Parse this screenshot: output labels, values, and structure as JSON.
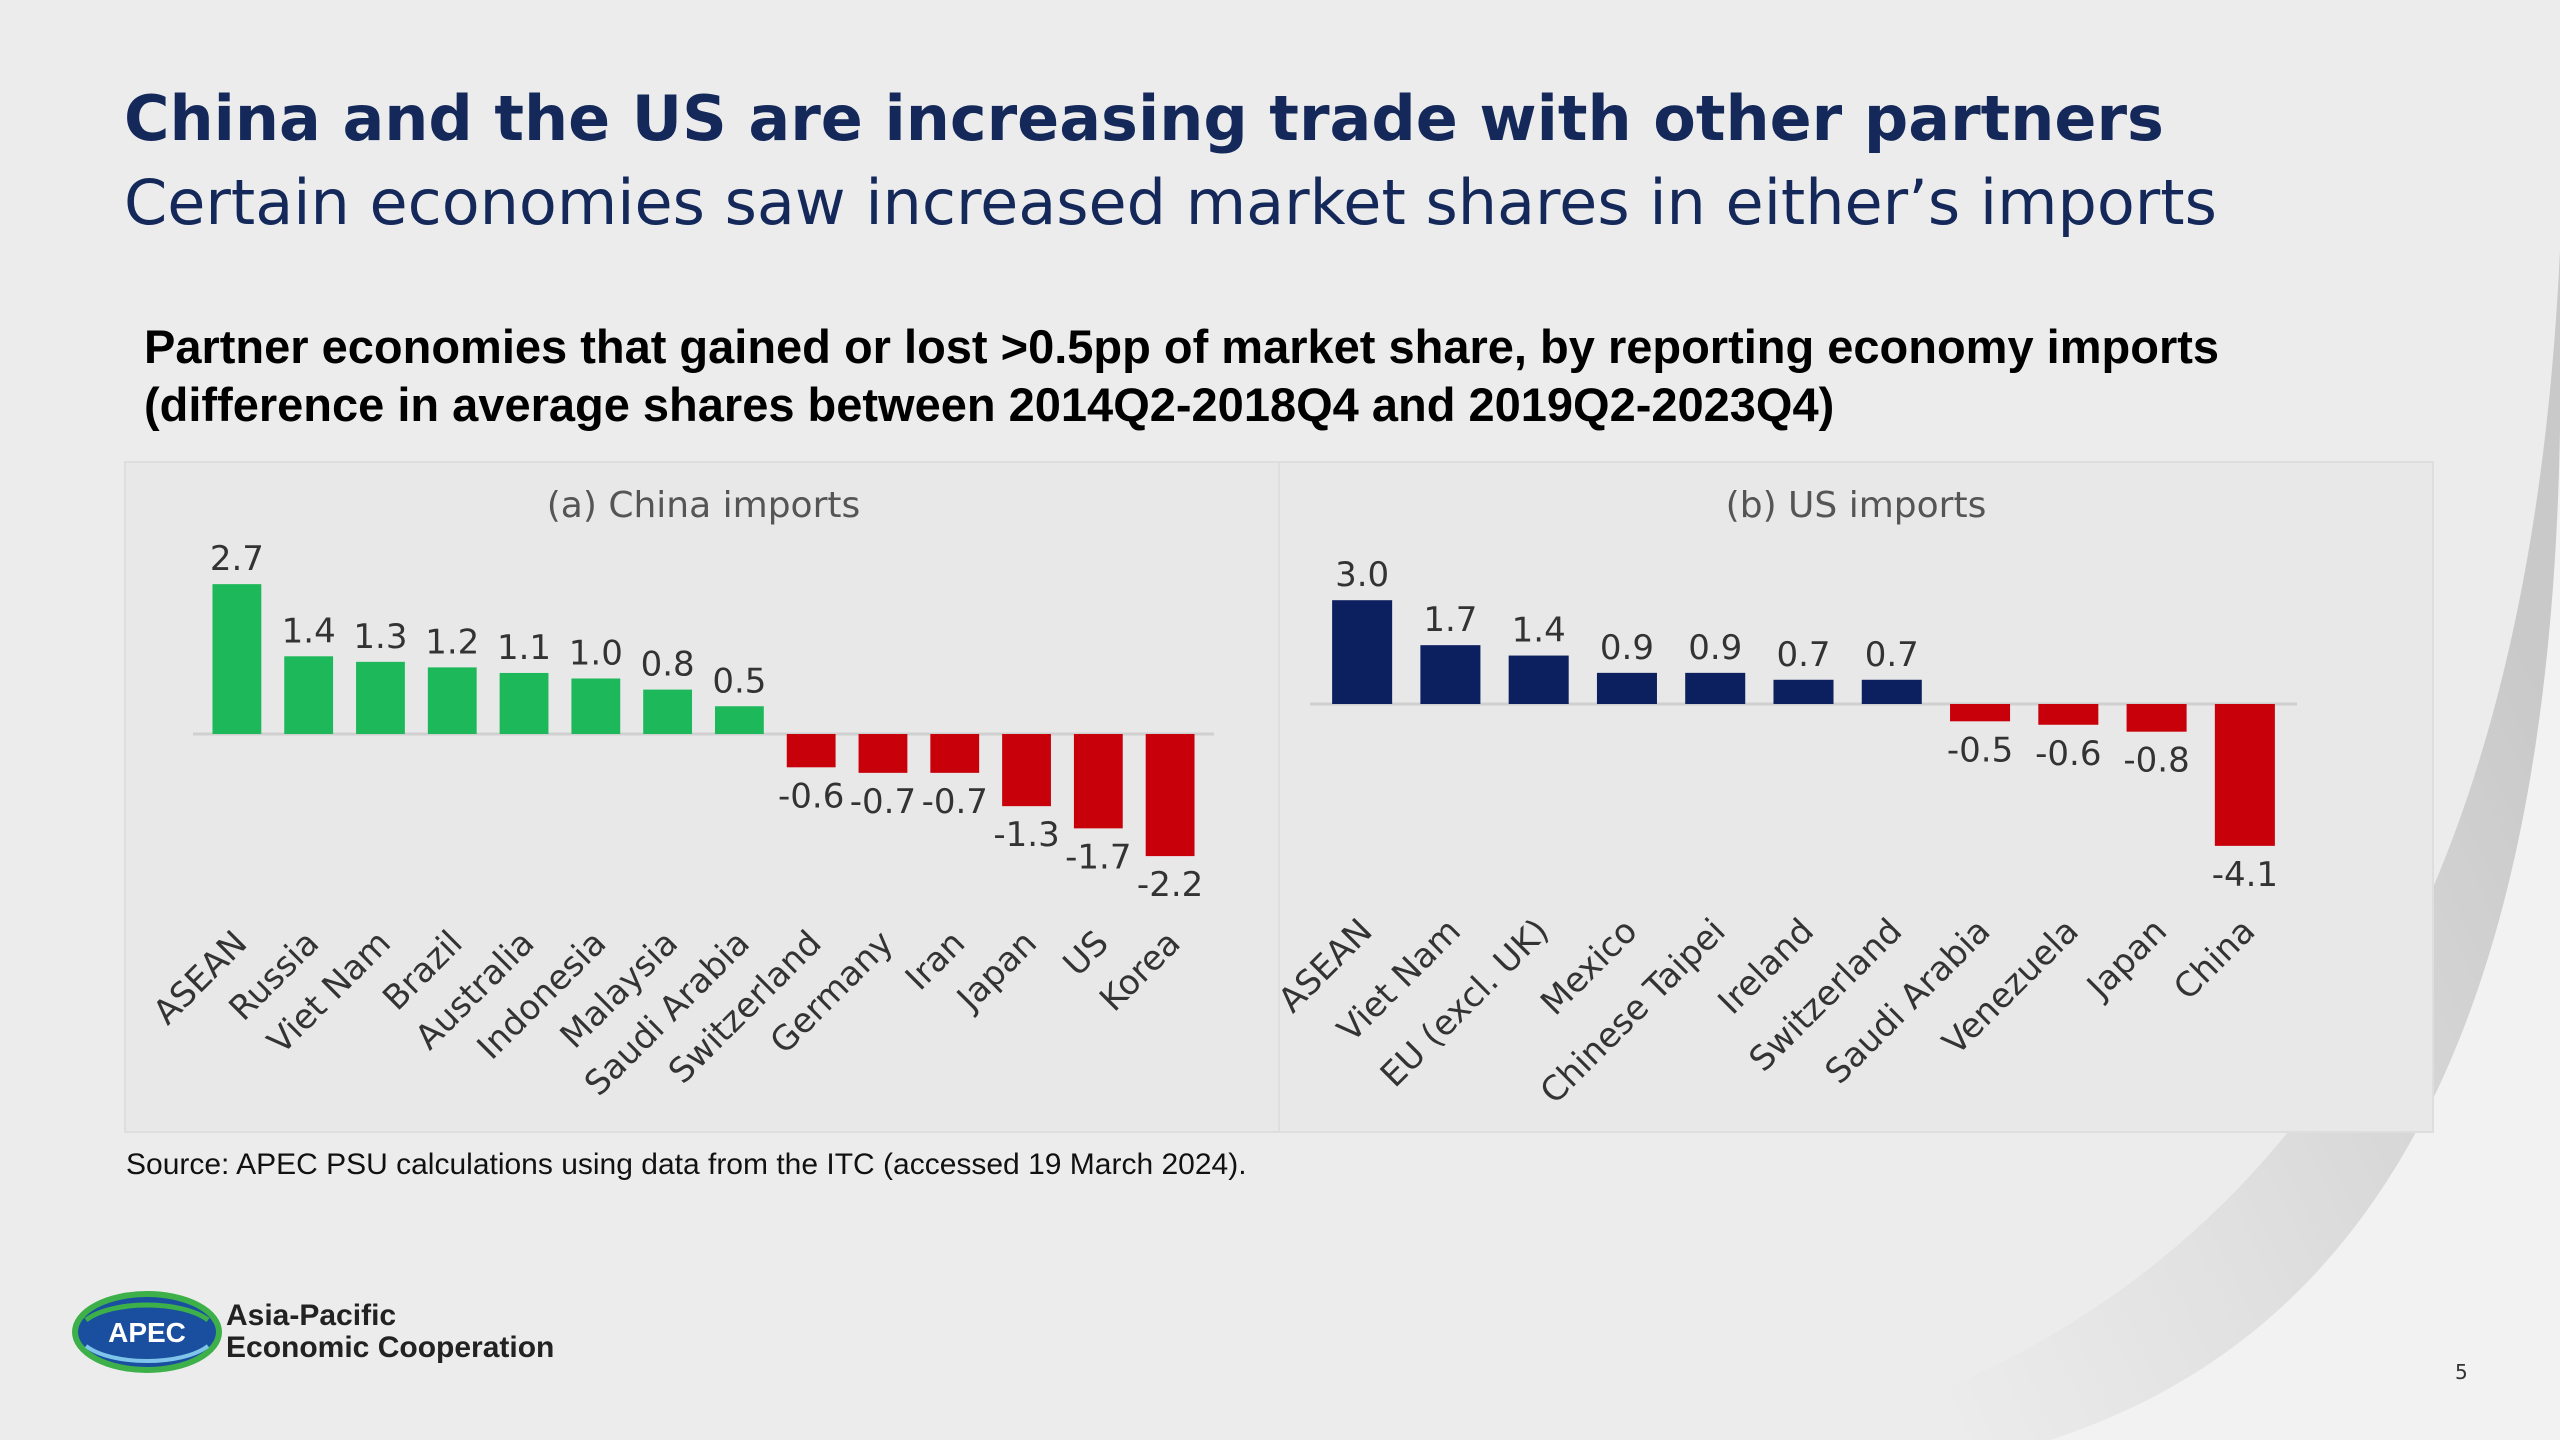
{
  "slide": {
    "title": "China and the US are increasing trade with other partners",
    "subtitle": "Certain economies saw increased market shares in either’s imports",
    "chart_heading_line1": "Partner economies that gained or lost >0.5pp of market share, by reporting economy imports",
    "chart_heading_line2": "(difference in average shares between 2014Q2-2018Q4 and 2019Q2-2023Q4)",
    "source": "Source: APEC PSU calculations using data from the ITC (accessed 19 March 2024).",
    "logo_badge": "APEC",
    "logo_line1": "Asia-Pacific",
    "logo_line2": "Economic Cooperation",
    "page_number": "5"
  },
  "colors": {
    "title": "#14285a",
    "positive_china": "#1cb85a",
    "negative": "#c8000a",
    "positive_us": "#0c1f5e",
    "panel_bg": "#e8e8e8"
  },
  "chart_data": [
    {
      "type": "bar",
      "title": "(a) China imports",
      "categories": [
        "ASEAN",
        "Russia",
        "Viet Nam",
        "Brazil",
        "Australia",
        "Indonesia",
        "Malaysia",
        "Saudi Arabia",
        "Switzerland",
        "Germany",
        "Iran",
        "Japan",
        "US",
        "Korea"
      ],
      "values": [
        2.7,
        1.4,
        1.3,
        1.2,
        1.1,
        1.0,
        0.8,
        0.5,
        -0.6,
        -0.7,
        -0.7,
        -1.3,
        -1.7,
        -2.2
      ],
      "value_labels": [
        "2.7",
        "1.4",
        "1.3",
        "1.2",
        "1.1",
        "1.0",
        "0.8",
        "0.5",
        "-0.6",
        "-0.7",
        "-0.7",
        "-1.3",
        "-1.7",
        "-2.2"
      ],
      "positive_color": "#1cb85a",
      "negative_color": "#c8000a",
      "grid": false,
      "legend": false
    },
    {
      "type": "bar",
      "title": "(b) US imports",
      "categories": [
        "ASEAN",
        "Viet Nam",
        "EU (excl. UK)",
        "Mexico",
        "Chinese Taipei",
        "Ireland",
        "Switzerland",
        "Saudi Arabia",
        "Venezuela",
        "Japan",
        "China"
      ],
      "values": [
        3.0,
        1.7,
        1.4,
        0.9,
        0.9,
        0.7,
        0.7,
        -0.5,
        -0.6,
        -0.8,
        -4.1
      ],
      "value_labels": [
        "3.0",
        "1.7",
        "1.4",
        "0.9",
        "0.9",
        "0.7",
        "0.7",
        "-0.5",
        "-0.6",
        "-0.8",
        "-4.1"
      ],
      "positive_color": "#0c1f5e",
      "negative_color": "#c8000a",
      "grid": false,
      "legend": false
    }
  ]
}
